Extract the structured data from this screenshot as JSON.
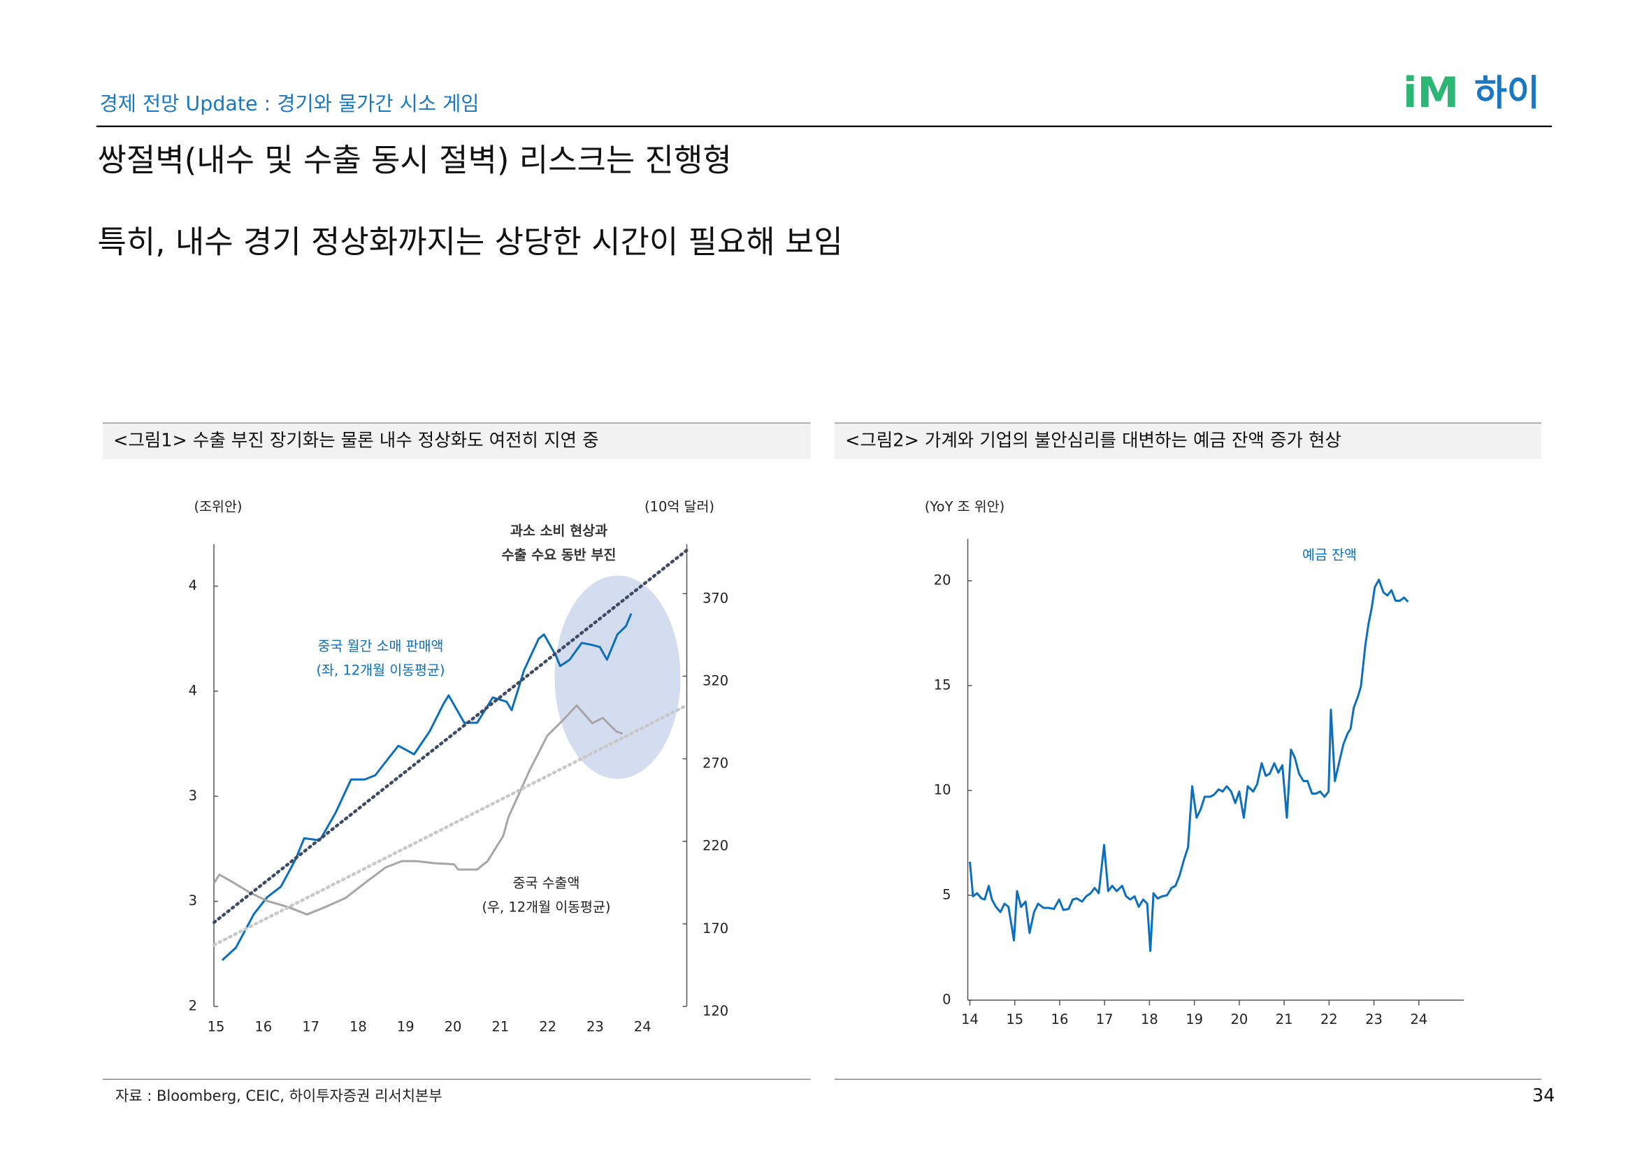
{
  "header": {
    "section": "경제 전망 Update : 경기와 물가간 시소 게임",
    "logo_mark": "iM",
    "logo_text": "하이"
  },
  "title": [
    "쌍절벽(내수 및 수출 동시 절벽) 리스크는 진행형",
    "특히, 내수 경기 정상화까지는 상당한 시간이 필요해 보임"
  ],
  "chart_data": [
    {
      "type": "line",
      "caption": "<그림1> 수출 부진 장기화는 물론 내수 정상화도 여전히 지연 중",
      "ylabel": "(조위안)",
      "y2label": "(10억 달러)",
      "annotations": [
        "과소 소비 현상과",
        "수출 수요 동반 부진"
      ],
      "xlim": [
        15,
        25
      ],
      "xticks": [
        15,
        16,
        17,
        18,
        19,
        20,
        21,
        22,
        23,
        24
      ],
      "ylim": [
        2,
        4.2
      ],
      "yticks": [
        2,
        {
          "value": 2.5,
          "label": "3"
        },
        3,
        {
          "value": 3.5,
          "label": "4"
        },
        4
      ],
      "y2lim": [
        120,
        400
      ],
      "y2ticks": [
        120,
        170,
        220,
        270,
        320,
        370
      ],
      "series": [
        {
          "name": "중국 월간 소매 판매액",
          "note": "(좌, 12개월 이동평균)",
          "color": "#0b6ebf",
          "x": [
            15.13,
            15.42,
            15.8,
            16.08,
            16.37,
            16.68,
            16.86,
            17.19,
            17.52,
            17.85,
            18.14,
            18.36,
            18.67,
            18.85,
            19.18,
            19.51,
            19.8,
            19.91,
            20.24,
            20.51,
            20.84,
            21.13,
            21.24,
            21.5,
            21.81,
            21.92,
            22.17,
            22.26,
            22.46,
            22.72,
            22.94,
            23.1,
            23.25,
            23.47,
            23.65,
            23.76
          ],
          "values": [
            2.22,
            2.28,
            2.44,
            2.52,
            2.57,
            2.7,
            2.8,
            2.79,
            2.92,
            3.08,
            3.08,
            3.1,
            3.19,
            3.24,
            3.2,
            3.31,
            3.44,
            3.48,
            3.35,
            3.35,
            3.47,
            3.45,
            3.41,
            3.6,
            3.75,
            3.77,
            3.67,
            3.62,
            3.65,
            3.73,
            3.72,
            3.71,
            3.65,
            3.77,
            3.81,
            3.87
          ]
        },
        {
          "name": "중국 수출액",
          "note": "(우, 12개월 이동평균)",
          "color": "#a6a6a6",
          "axis": "y2",
          "x": [
            14.96,
            15.07,
            15.35,
            15.71,
            16.08,
            16.53,
            16.92,
            17.3,
            17.74,
            18.14,
            18.58,
            18.92,
            19.23,
            19.62,
            20.02,
            20.11,
            20.51,
            20.73,
            21.06,
            21.17,
            21.62,
            21.99,
            22.32,
            22.61,
            22.94,
            23.16,
            23.45,
            23.58
          ],
          "values": [
            194.7,
            199.8,
            195.3,
            189.0,
            183.9,
            180.1,
            175.7,
            180.1,
            185.8,
            194.7,
            204.2,
            208.0,
            208.0,
            206.7,
            206.1,
            202.9,
            202.9,
            208.0,
            223.2,
            234.6,
            263.1,
            283.9,
            293.4,
            302.3,
            291.5,
            294.7,
            286.5,
            285.2
          ]
        },
        {
          "color": "#3d4b66",
          "style": "dotted",
          "x": [
            14.96,
            24.93
          ],
          "values": [
            2.4,
            4.17
          ]
        },
        {
          "color": "#c8c8c8",
          "style": "dotted",
          "axis": "y2",
          "x": [
            14.96,
            24.93
          ],
          "values": [
            157.3,
            302.3
          ]
        }
      ]
    },
    {
      "type": "line",
      "caption": "<그림2> 가계와 기업의 불안심리를 대변하는 예금 잔액 증가 현상",
      "ylabel": "(YoY 조 위안)",
      "xlim": [
        14,
        25
      ],
      "xticks": [
        14,
        15,
        16,
        17,
        18,
        19,
        20,
        21,
        22,
        23,
        24
      ],
      "ylim": [
        0,
        22
      ],
      "yticks": [
        0,
        5,
        10,
        15,
        20
      ],
      "series": [
        {
          "name": "예금 잔액",
          "color": "#0b6ebf",
          "x": [
            14.0,
            14.07,
            14.16,
            14.26,
            14.33,
            14.42,
            14.49,
            14.58,
            14.68,
            14.77,
            14.86,
            14.98,
            15.05,
            15.14,
            15.24,
            15.33,
            15.43,
            15.52,
            15.64,
            15.75,
            15.87,
            15.99,
            16.08,
            16.2,
            16.29,
            16.38,
            16.5,
            16.59,
            16.69,
            16.78,
            16.87,
            16.99,
            17.08,
            17.17,
            17.27,
            17.39,
            17.48,
            17.57,
            17.67,
            17.76,
            17.86,
            17.95,
            18.02,
            18.09,
            18.18,
            18.28,
            18.39,
            18.49,
            18.58,
            18.67,
            18.77,
            18.86,
            18.95,
            19.05,
            19.14,
            19.23,
            19.35,
            19.44,
            19.54,
            19.63,
            19.72,
            19.82,
            19.91,
            20.0,
            20.1,
            20.19,
            20.31,
            20.4,
            20.5,
            20.59,
            20.68,
            20.78,
            20.87,
            20.96,
            21.06,
            21.15,
            21.24,
            21.33,
            21.43,
            21.52,
            21.62,
            21.71,
            21.8,
            21.9,
            21.99,
            22.04,
            22.13,
            22.22,
            22.32,
            22.41,
            22.48,
            22.55,
            22.64,
            22.71,
            22.81,
            22.88,
            22.95,
            23.02,
            23.11,
            23.21,
            23.3,
            23.39,
            23.48,
            23.58,
            23.67,
            23.76
          ],
          "values": [
            6.6,
            4.95,
            5.1,
            4.85,
            4.8,
            5.45,
            4.8,
            4.45,
            4.2,
            4.6,
            4.45,
            2.85,
            5.2,
            4.45,
            4.7,
            3.2,
            4.2,
            4.6,
            4.4,
            4.4,
            4.35,
            4.8,
            4.3,
            4.35,
            4.8,
            4.85,
            4.7,
            4.95,
            5.1,
            5.35,
            5.1,
            7.4,
            5.2,
            5.45,
            5.2,
            5.45,
            4.95,
            4.8,
            4.95,
            4.45,
            4.8,
            4.6,
            2.35,
            5.1,
            4.85,
            4.95,
            5.0,
            5.35,
            5.45,
            5.95,
            6.7,
            7.3,
            10.2,
            8.7,
            9.1,
            9.7,
            9.7,
            9.8,
            10.05,
            9.95,
            10.2,
            9.95,
            9.4,
            9.95,
            8.7,
            10.2,
            9.95,
            10.3,
            11.3,
            10.7,
            10.8,
            11.3,
            10.85,
            11.2,
            8.7,
            11.95,
            11.55,
            10.8,
            10.45,
            10.45,
            9.85,
            9.85,
            9.95,
            9.7,
            9.95,
            13.85,
            10.45,
            11.3,
            12.2,
            12.7,
            12.95,
            13.95,
            14.45,
            14.95,
            16.95,
            17.95,
            18.7,
            19.7,
            20.05,
            19.45,
            19.3,
            19.55,
            19.05,
            19.05,
            19.2,
            19.0
          ]
        }
      ]
    }
  ],
  "source": "자료 : Bloomberg, CEIC, 하이투자증권 리서치본부",
  "page_number": 34
}
